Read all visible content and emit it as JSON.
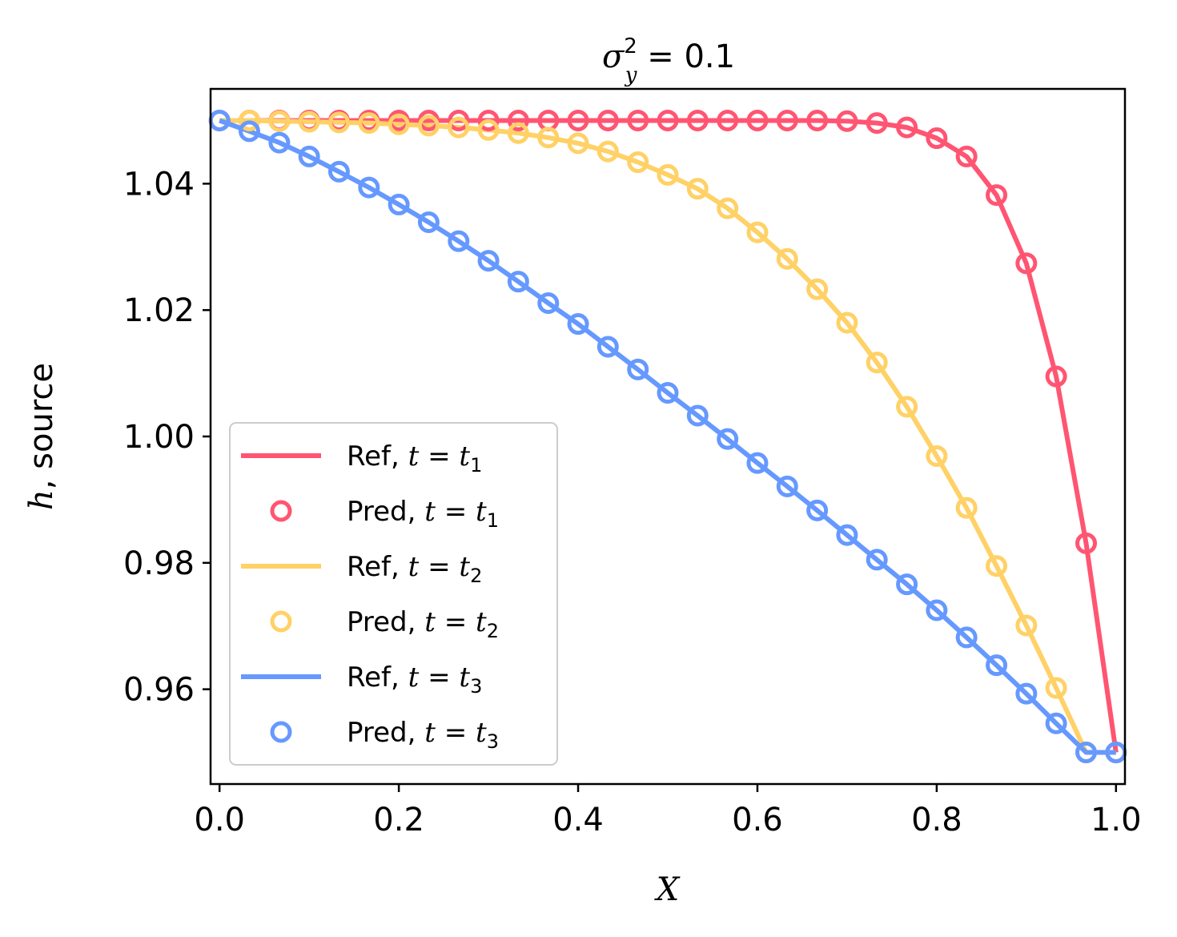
{
  "chart_data": {
    "type": "line",
    "title": {
      "symbol": "σ",
      "sup": "2",
      "sub": "y",
      "rest": " = 0.1"
    },
    "xlabel": "X",
    "ylabel": {
      "italic": "h",
      "rest": ", source"
    },
    "xlim": [
      -0.01,
      1.01
    ],
    "ylim": [
      0.945,
      1.055
    ],
    "xticks": [
      0.0,
      0.2,
      0.4,
      0.6,
      0.8,
      1.0
    ],
    "xtick_labels": [
      "0.0",
      "0.2",
      "0.4",
      "0.6",
      "0.8",
      "1.0"
    ],
    "yticks": [
      0.96,
      0.98,
      1.0,
      1.02,
      1.04
    ],
    "ytick_labels": [
      "0.96",
      "0.98",
      "1.00",
      "1.02",
      "1.04"
    ],
    "grid": false,
    "legend_position": "lower-left",
    "x": [
      0.0,
      0.0333,
      0.0667,
      0.1,
      0.1333,
      0.1667,
      0.2,
      0.2333,
      0.2667,
      0.3,
      0.3333,
      0.3667,
      0.4,
      0.4333,
      0.4667,
      0.5,
      0.5333,
      0.5667,
      0.6,
      0.6333,
      0.6667,
      0.7,
      0.7333,
      0.7667,
      0.8,
      0.8333,
      0.8667,
      0.9,
      0.9333,
      0.9667,
      1.0
    ],
    "series": [
      {
        "name": "t1",
        "color": "#ff5572",
        "ref_label": "Ref, ",
        "pred_label": "Pred, ",
        "time_sub": "1",
        "values": [
          1.05,
          1.05,
          1.05,
          1.05,
          1.05,
          1.05,
          1.05,
          1.05,
          1.05,
          1.05,
          1.05,
          1.05,
          1.05,
          1.05,
          1.05,
          1.05,
          1.05,
          1.05,
          1.05,
          1.05,
          1.05,
          1.0499,
          1.0496,
          1.0489,
          1.0472,
          1.0443,
          1.0382,
          1.0274,
          1.0095,
          0.9831,
          0.95
        ]
      },
      {
        "name": "t2",
        "color": "#ffd166",
        "ref_label": "Ref, ",
        "pred_label": "Pred, ",
        "time_sub": "2",
        "values": [
          1.05,
          1.05,
          1.0499,
          1.0498,
          1.0497,
          1.0496,
          1.0494,
          1.0492,
          1.0489,
          1.0485,
          1.048,
          1.0473,
          1.0464,
          1.0451,
          1.0434,
          1.0414,
          1.0392,
          1.0361,
          1.0323,
          1.0281,
          1.0233,
          1.018,
          1.0117,
          1.0047,
          0.9969,
          0.9887,
          0.9795,
          0.9701,
          0.9602,
          0.95,
          0.95
        ]
      },
      {
        "name": "t3",
        "color": "#6699ff",
        "ref_label": "Ref, ",
        "pred_label": "Pred, ",
        "time_sub": "3",
        "values": [
          1.05,
          1.0483,
          1.0465,
          1.0443,
          1.0419,
          1.0394,
          1.0367,
          1.0339,
          1.0309,
          1.0278,
          1.0245,
          1.0211,
          1.0178,
          1.0142,
          1.0106,
          1.0069,
          1.0033,
          0.9996,
          0.9958,
          0.9921,
          0.9883,
          0.9844,
          0.9805,
          0.9766,
          0.9725,
          0.9682,
          0.9638,
          0.9593,
          0.9546,
          0.95,
          0.95
        ]
      }
    ]
  }
}
